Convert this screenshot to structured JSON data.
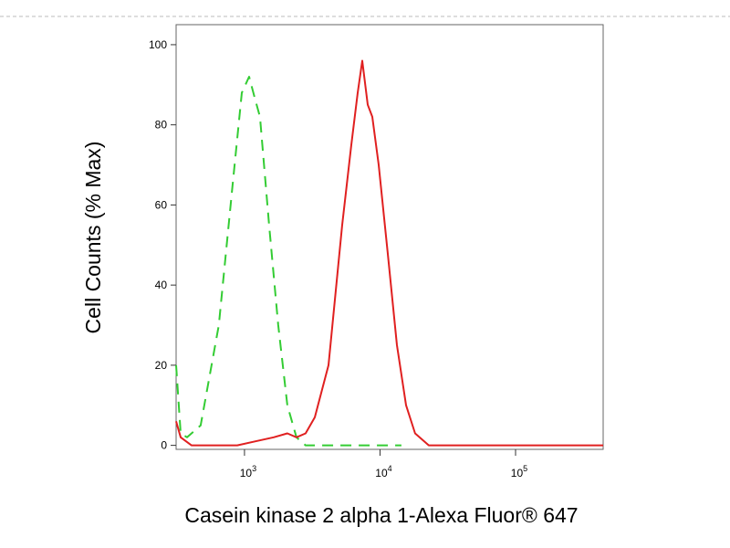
{
  "chart_data": {
    "type": "line",
    "xlabel": "Casein kinase 2 alpha 1-Alexa Fluor® 647",
    "ylabel": "Cell Counts (% Max)",
    "log_x": true,
    "xlim": [
      313,
      443000
    ],
    "ylim": [
      -1,
      105
    ],
    "xticks": [
      {
        "value": 1000,
        "label": "10",
        "exponent": "3"
      },
      {
        "value": 10000,
        "label": "10",
        "exponent": "4"
      },
      {
        "value": 100000,
        "label": "10",
        "exponent": "5"
      }
    ],
    "yticks": [
      0,
      20,
      40,
      60,
      80,
      100
    ],
    "series": [
      {
        "color": "#33cc33",
        "dash": true,
        "x": [
          313,
          338,
          377,
          475,
          647,
          817,
          955,
          1081,
          1205,
          1301,
          1520,
          1774,
          2071,
          2420,
          2826,
          14390
        ],
        "values": [
          20,
          3,
          2,
          5,
          30,
          65,
          88,
          92,
          86,
          82,
          55,
          30,
          10,
          2,
          0,
          0
        ]
      },
      {
        "color": "#e02020",
        "dash": false,
        "x": [
          313,
          338,
          406,
          884,
          1205,
          1642,
          2071,
          2420,
          2826,
          3303,
          4169,
          5260,
          6141,
          6841,
          7392,
          8111,
          8767,
          9772,
          11400,
          13330,
          15560,
          18160,
          22910,
          443000
        ],
        "values": [
          6,
          2,
          0,
          0,
          1,
          2,
          3,
          2,
          3,
          7,
          20,
          55,
          75,
          88,
          96,
          85,
          82,
          70,
          48,
          25,
          10,
          3,
          0,
          0
        ]
      }
    ]
  }
}
